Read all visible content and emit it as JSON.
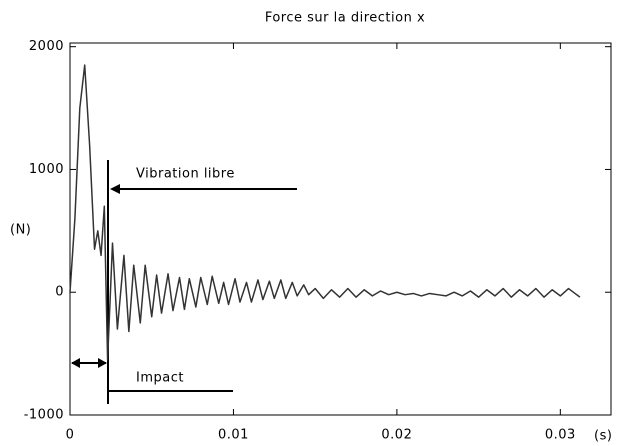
{
  "chart_data": {
    "type": "line",
    "title": "Force sur la direction x",
    "xlabel": "(s)",
    "ylabel": "(N)",
    "annotations": [
      "Vibration libre",
      "Impact"
    ],
    "color": "#333333",
    "x": [
      0,
      0.0003,
      0.0006,
      0.0009,
      0.0012,
      0.0015,
      0.0017,
      0.0019,
      0.0021,
      0.0023,
      0.0026,
      0.0029,
      0.0033,
      0.0036,
      0.0039,
      0.0043,
      0.0046,
      0.005,
      0.0053,
      0.0056,
      0.006,
      0.0063,
      0.0067,
      0.007,
      0.0073,
      0.0077,
      0.008,
      0.0084,
      0.0087,
      0.0091,
      0.0094,
      0.0097,
      0.0101,
      0.0104,
      0.0108,
      0.0111,
      0.0115,
      0.0118,
      0.0122,
      0.0125,
      0.0129,
      0.0132,
      0.0136,
      0.0139,
      0.0143,
      0.0146,
      0.015,
      0.0155,
      0.016,
      0.0165,
      0.017,
      0.0175,
      0.018,
      0.0185,
      0.019,
      0.0195,
      0.02,
      0.0205,
      0.021,
      0.0215,
      0.022,
      0.0225,
      0.023,
      0.0235,
      0.024,
      0.0245,
      0.025,
      0.0255,
      0.026,
      0.0265,
      0.027,
      0.0275,
      0.028,
      0.0285,
      0.029,
      0.0295,
      0.03,
      0.0305,
      0.031,
      0.0312
    ],
    "values": [
      0,
      600,
      1500,
      1850,
      1200,
      350,
      500,
      300,
      700,
      -550,
      400,
      -300,
      300,
      -320,
      220,
      -250,
      220,
      -200,
      140,
      -170,
      150,
      -150,
      120,
      -140,
      110,
      -120,
      120,
      -100,
      130,
      -90,
      80,
      -100,
      110,
      -80,
      80,
      -80,
      100,
      -60,
      90,
      -50,
      100,
      -50,
      80,
      -30,
      60,
      -20,
      30,
      -50,
      20,
      -40,
      30,
      -40,
      20,
      -30,
      10,
      -20,
      0,
      -20,
      -10,
      -30,
      -10,
      -20,
      -30,
      0,
      -30,
      10,
      -40,
      20,
      -30,
      30,
      -40,
      20,
      -30,
      30,
      -40,
      20,
      -30,
      30,
      -20,
      -40
    ],
    "xlim": [
      0,
      0.0331
    ],
    "ylim": [
      -1000,
      2030
    ],
    "xticks": [
      0,
      0.01,
      0.02,
      0.03
    ],
    "yticks": [
      -1000,
      0,
      1000,
      2000
    ]
  }
}
